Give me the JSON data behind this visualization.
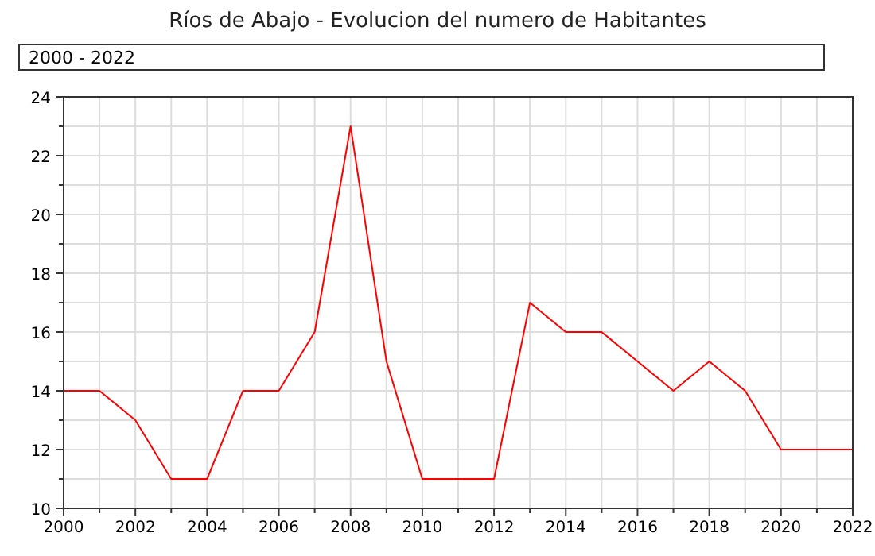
{
  "chart_data": {
    "type": "line",
    "title": "Ríos de Abajo - Evolucion del numero de Habitantes",
    "subtitle": "2000 - 2022",
    "x": [
      2000,
      2001,
      2002,
      2003,
      2004,
      2005,
      2006,
      2007,
      2008,
      2009,
      2010,
      2011,
      2012,
      2013,
      2014,
      2015,
      2016,
      2017,
      2018,
      2019,
      2020,
      2021,
      2022
    ],
    "series": [
      {
        "color": "#ff0000",
        "values": [
          14,
          14,
          13,
          11,
          11,
          14,
          14,
          16,
          23,
          15,
          11,
          11,
          11,
          17,
          16,
          16,
          15,
          14,
          15,
          14,
          12,
          12,
          12
        ]
      }
    ],
    "xlim": [
      2000,
      2022
    ],
    "xticks": [
      2000,
      {
        "value": 2001,
        "label": null
      },
      2002,
      {
        "value": 2003,
        "label": null
      },
      2004,
      {
        "value": 2005,
        "label": null
      },
      2006,
      {
        "value": 2007,
        "label": null
      },
      2008,
      {
        "value": 2009,
        "label": null
      },
      2010,
      {
        "value": 2011,
        "label": null
      },
      2012,
      {
        "value": 2013,
        "label": null
      },
      2014,
      {
        "value": 2015,
        "label": null
      },
      2016,
      {
        "value": 2017,
        "label": null
      },
      2018,
      {
        "value": 2019,
        "label": null
      },
      2020,
      {
        "value": 2021,
        "label": null
      },
      2022
    ],
    "ylim": [
      10,
      24
    ],
    "yticks": [
      10,
      {
        "value": 11,
        "label": null
      },
      12,
      {
        "value": 13,
        "label": null
      },
      14,
      {
        "value": 15,
        "label": null
      },
      16,
      {
        "value": 17,
        "label": null
      },
      18,
      {
        "value": 19,
        "label": null
      },
      20,
      {
        "value": 21,
        "label": null
      },
      22,
      {
        "value": 23,
        "label": null
      },
      24
    ],
    "grid": true,
    "marker": "none",
    "line_style": "solid"
  }
}
